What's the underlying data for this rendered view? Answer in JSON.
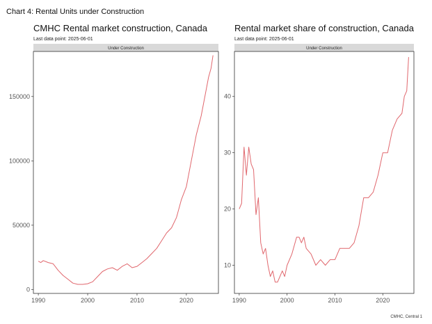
{
  "figure": {
    "title": "Chart 4: Rental Units under Construction",
    "source": "CMHC, Central 1"
  },
  "colors": {
    "line": "#e0666c",
    "strip": "#d9d9d9",
    "axis": "#333333"
  },
  "chart_data": [
    {
      "type": "line",
      "title": "CMHC Rental market construction, Canada",
      "subtitle": "Last data point: 2025-06-01",
      "facet": "Under Construction",
      "xlabel": "",
      "ylabel": "",
      "xlim": [
        1989,
        2026.5
      ],
      "ylim": [
        -3000,
        185000
      ],
      "xticks": [
        1990,
        2000,
        2010,
        2020
      ],
      "xtick_labels": [
        "1990",
        "2000",
        "2010",
        "2020"
      ],
      "yticks": [
        0,
        50000,
        100000,
        150000
      ],
      "ytick_labels": [
        "0",
        "50000",
        "100000",
        "150000"
      ],
      "grid": false,
      "series": [
        {
          "x": [
            1990,
            1990.5,
            1991,
            1992,
            1993,
            1994,
            1995,
            1996,
            1997,
            1998,
            1999,
            2000,
            2001,
            2002,
            2003,
            2004,
            2005,
            2006,
            2007,
            2008,
            2009,
            2010,
            2011,
            2012,
            2013,
            2014,
            2015,
            2016,
            2017,
            2018,
            2019,
            2020,
            2021,
            2022,
            2023,
            2024,
            2024.5,
            2025,
            2025.4
          ],
          "y": [
            22000,
            21000,
            22500,
            21000,
            20000,
            15000,
            11000,
            8000,
            5000,
            4000,
            4000,
            4500,
            6000,
            10000,
            14000,
            16000,
            17000,
            15000,
            18000,
            20000,
            17000,
            18000,
            21000,
            24000,
            28000,
            32000,
            38000,
            44000,
            48000,
            56000,
            70000,
            80000,
            100000,
            120000,
            135000,
            155000,
            165000,
            172000,
            182000
          ]
        }
      ]
    },
    {
      "type": "line",
      "title": "Rental market share of construction, Canada",
      "subtitle": "Last data point: 2025-06-01",
      "facet": "Under Construction",
      "xlabel": "",
      "ylabel": "",
      "xlim": [
        1989,
        2026.5
      ],
      "ylim": [
        5,
        48
      ],
      "xticks": [
        1990,
        2000,
        2010,
        2020
      ],
      "xtick_labels": [
        "1990",
        "2000",
        "2010",
        "2020"
      ],
      "yticks": [
        10,
        20,
        30,
        40
      ],
      "ytick_labels": [
        "10",
        "20",
        "30",
        "40"
      ],
      "grid": false,
      "series": [
        {
          "x": [
            1990,
            1990.5,
            1991,
            1991.5,
            1992,
            1992.5,
            1993,
            1993.5,
            1994,
            1994.5,
            1995,
            1995.5,
            1996,
            1996.5,
            1997,
            1997.5,
            1998,
            1998.5,
            1999,
            1999.5,
            2000,
            2001,
            2002,
            2002.5,
            2003,
            2003.5,
            2004,
            2005,
            2006,
            2007,
            2008,
            2009,
            2010,
            2011,
            2012,
            2013,
            2014,
            2015,
            2016,
            2017,
            2018,
            2019,
            2020,
            2021,
            2022,
            2023,
            2024,
            2024.5,
            2025,
            2025.4
          ],
          "y": [
            20,
            21,
            31,
            26,
            31,
            28,
            27,
            19,
            22,
            14,
            12,
            13,
            10,
            8,
            9,
            7,
            7,
            8,
            9,
            8,
            10,
            12,
            15,
            15,
            14,
            15,
            13,
            12,
            10,
            11,
            10,
            11,
            11,
            13,
            13,
            13,
            14,
            17,
            22,
            22,
            23,
            26,
            30,
            30,
            34,
            36,
            37,
            40,
            41,
            47
          ]
        }
      ]
    }
  ]
}
